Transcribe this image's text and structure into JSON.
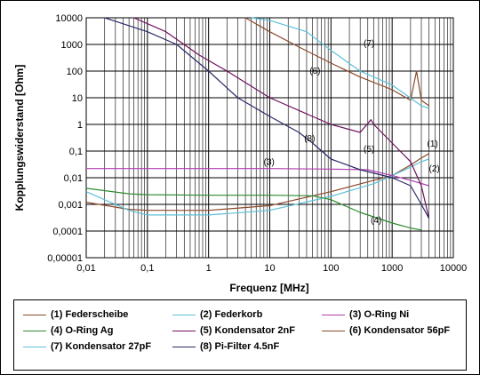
{
  "chart_data": {
    "type": "line",
    "xlabel": "Frequenz [MHz]",
    "ylabel": "Kopplungswiderstand [Ohm]",
    "xscale": "log",
    "yscale": "log",
    "xlim": [
      0.01,
      10000
    ],
    "ylim": [
      1e-05,
      10000
    ],
    "x_ticks": [
      "0,01",
      "0,1",
      "1",
      "10",
      "100",
      "1000",
      "10000"
    ],
    "y_ticks": [
      "0,00001",
      "0,0001",
      "0,001",
      "0,01",
      "0,1",
      "1",
      "10",
      "100",
      "1000",
      "10000"
    ],
    "grid": true,
    "legend_position": "bottom",
    "series": [
      {
        "name": "(1) Federscheibe",
        "label": "(1)",
        "color": "#8b4a2b",
        "points": [
          [
            0.01,
            0.0012
          ],
          [
            0.05,
            0.00065
          ],
          [
            0.1,
            0.0006
          ],
          [
            1,
            0.0006
          ],
          [
            10,
            0.0009
          ],
          [
            100,
            0.003
          ],
          [
            500,
            0.008
          ],
          [
            1000,
            0.012
          ],
          [
            2000,
            0.03
          ],
          [
            3000,
            0.055
          ],
          [
            4000,
            0.08
          ]
        ]
      },
      {
        "name": "(2) Federkorb",
        "label": "(2)",
        "color": "#5bc0d8",
        "points": [
          [
            0.01,
            0.003
          ],
          [
            0.05,
            0.0006
          ],
          [
            0.1,
            0.0004
          ],
          [
            1,
            0.0004
          ],
          [
            10,
            0.0006
          ],
          [
            100,
            0.002
          ],
          [
            500,
            0.006
          ],
          [
            1000,
            0.012
          ],
          [
            2000,
            0.025
          ],
          [
            3000,
            0.04
          ],
          [
            4000,
            0.05
          ]
        ]
      },
      {
        "name": "(3) O-Ring Ni",
        "label": "(3)",
        "color": "#b040b0",
        "points": [
          [
            0.01,
            0.022
          ],
          [
            0.1,
            0.022
          ],
          [
            1,
            0.022
          ],
          [
            10,
            0.022
          ],
          [
            100,
            0.021
          ],
          [
            400,
            0.02
          ],
          [
            1000,
            0.012
          ],
          [
            2000,
            0.008
          ],
          [
            4000,
            0.005
          ]
        ]
      },
      {
        "name": "(4) O-Ring Ag",
        "label": "(4)",
        "color": "#2e8b2e",
        "points": [
          [
            0.01,
            0.004
          ],
          [
            0.05,
            0.0025
          ],
          [
            0.1,
            0.0023
          ],
          [
            1,
            0.0022
          ],
          [
            10,
            0.0022
          ],
          [
            50,
            0.0021
          ],
          [
            100,
            0.0015
          ],
          [
            300,
            0.0005
          ],
          [
            1000,
            0.0002
          ],
          [
            2000,
            0.00013
          ],
          [
            3000,
            0.00011
          ]
        ]
      },
      {
        "name": "(5) Kondensator 2nF",
        "label": "(5)",
        "color": "#701060",
        "points": [
          [
            0.06,
            10000
          ],
          [
            0.2,
            3000
          ],
          [
            0.7,
            400
          ],
          [
            2,
            100
          ],
          [
            10,
            10
          ],
          [
            50,
            2
          ],
          [
            100,
            1
          ],
          [
            300,
            0.5
          ],
          [
            450,
            1.5
          ],
          [
            500,
            1
          ],
          [
            1000,
            0.2
          ],
          [
            2000,
            0.04
          ],
          [
            3000,
            0.005
          ],
          [
            4000,
            0.0003
          ]
        ]
      },
      {
        "name": "(6) Kondensator 56pF",
        "label": "(6)",
        "color": "#8b4a2b",
        "points": [
          [
            4,
            10000
          ],
          [
            10,
            3000
          ],
          [
            30,
            800
          ],
          [
            100,
            200
          ],
          [
            300,
            60
          ],
          [
            1000,
            20
          ],
          [
            2000,
            8
          ],
          [
            2500,
            100
          ],
          [
            3000,
            8
          ],
          [
            4000,
            5
          ]
        ]
      },
      {
        "name": "(7) Kondensator 27pF",
        "label": "(7)",
        "color": "#5bc0d8",
        "points": [
          [
            5,
            10000
          ],
          [
            10,
            8000
          ],
          [
            40,
            3000
          ],
          [
            100,
            600
          ],
          [
            300,
            100
          ],
          [
            1000,
            30
          ],
          [
            3000,
            5
          ],
          [
            4000,
            4
          ]
        ]
      },
      {
        "name": "(8) Pi-Filter 4.5nF",
        "label": "(8)",
        "color": "#2a2a6a",
        "points": [
          [
            0.02,
            10000
          ],
          [
            0.1,
            3000
          ],
          [
            0.3,
            1000
          ],
          [
            1,
            100
          ],
          [
            3,
            10
          ],
          [
            10,
            2
          ],
          [
            30,
            0.5
          ],
          [
            50,
            0.2
          ],
          [
            100,
            0.05
          ],
          [
            300,
            0.02
          ],
          [
            1000,
            0.01
          ],
          [
            2000,
            0.005
          ],
          [
            3000,
            0.001
          ],
          [
            4000,
            0.0003
          ]
        ]
      }
    ]
  },
  "legend": {
    "items": [
      {
        "text": "(1) Federscheibe",
        "color": "#8b4a2b"
      },
      {
        "text": "(2) Federkorb",
        "color": "#5bc0d8"
      },
      {
        "text": "(3) O-Ring Ni",
        "color": "#b040b0"
      },
      {
        "text": "(4) O-Ring Ag",
        "color": "#2e8b2e"
      },
      {
        "text": "(5) Kondensator 2nF",
        "color": "#701060"
      },
      {
        "text": "(6) Kondensator 56pF",
        "color": "#8b4a2b"
      },
      {
        "text": "(7) Kondensator 27pF",
        "color": "#5bc0d8"
      },
      {
        "text": "(8) Pi-Filter 4.5nF",
        "color": "#2a2a6a"
      }
    ]
  }
}
